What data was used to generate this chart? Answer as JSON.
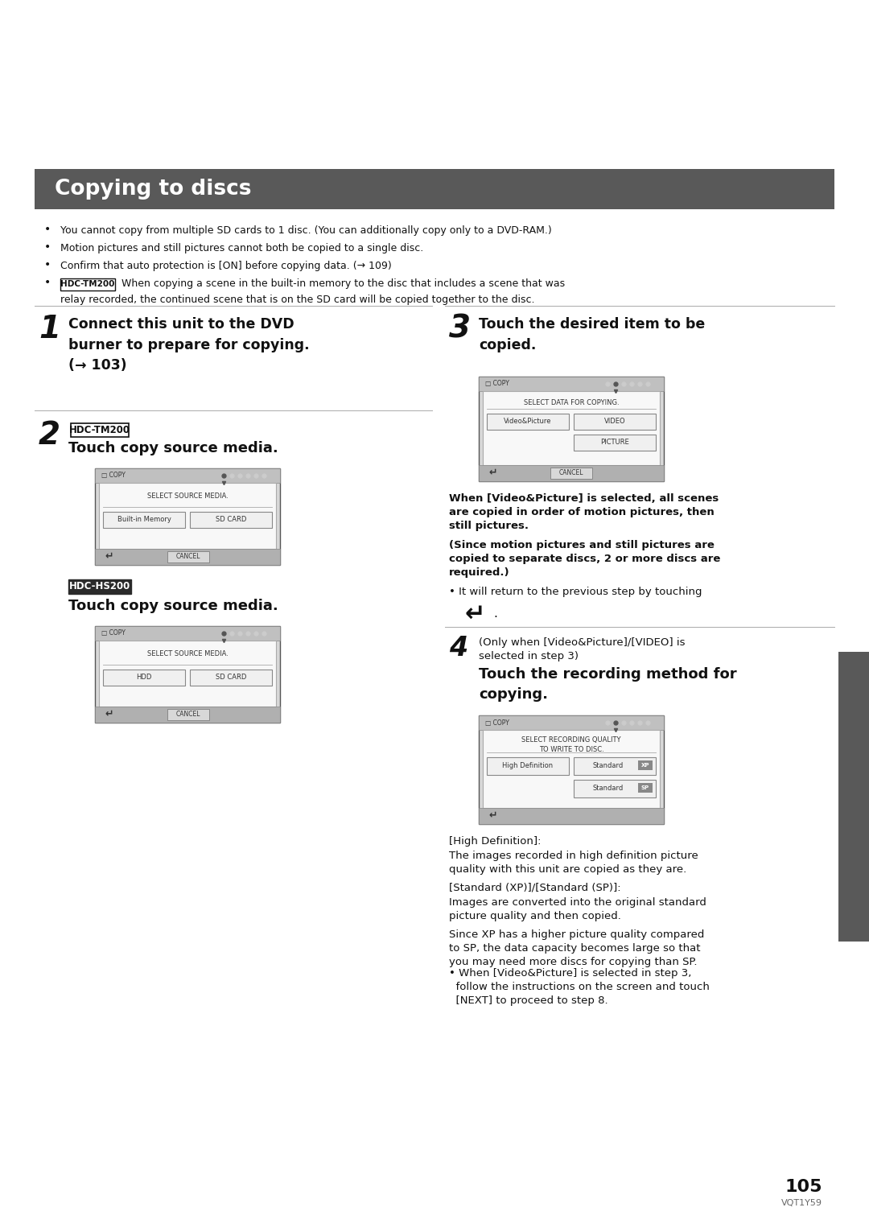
{
  "page_bg": "#ffffff",
  "title": "Copying to discs",
  "title_bg": "#595959",
  "title_fg": "#ffffff",
  "bullet1": "You cannot copy from multiple SD cards to 1 disc. (You can additionally copy only to a DVD-RAM.)",
  "bullet2": "Motion pictures and still pictures cannot both be copied to a single disc.",
  "bullet3": "Confirm that auto protection is [ON] before copying data. (→ 109)",
  "bullet4a": "HDC-TM200",
  "bullet4b": " When copying a scene in the built-in memory to the disc that includes a scene that was",
  "bullet4c": "relay recorded, the continued scene that is on the SD card will be copied together to the disc.",
  "step1_num": "1",
  "step1_text": "Connect this unit to the DVD\nburner to prepare for copying.\n(→ 103)",
  "step2_num": "2",
  "step2_tag": "HDC-TM200",
  "step2_text": "Touch copy source media.",
  "step2_screen_title": "SELECT SOURCE MEDIA.",
  "step2_btn1": "Built-in Memory",
  "step2_btn2": "SD CARD",
  "step2_cancel": "CANCEL",
  "step2b_tag": "HDC-HS200",
  "step2b_text": "Touch copy source media.",
  "step2b_screen_title": "SELECT SOURCE MEDIA.",
  "step2b_btn1": "HDD",
  "step2b_btn2": "SD CARD",
  "step2b_cancel": "CANCEL",
  "step3_num": "3",
  "step3_text": "Touch the desired item to be\ncopied.",
  "step3_screen_title": "SELECT DATA FOR COPYING.",
  "step3_btn1": "Video&Picture",
  "step3_btn2": "VIDEO",
  "step3_btn3": "PICTURE",
  "step3_cancel": "CANCEL",
  "step3_note1": "When [Video&Picture] is selected, all scenes\nare copied in order of motion pictures, then\nstill pictures.",
  "step3_note2": "(Since motion pictures and still pictures are\ncopied to separate discs, 2 or more discs are\nrequired.)",
  "step3_note3": "• It will return to the previous step by touching",
  "step4_num": "4",
  "step4_pre": "(Only when [Video&Picture]/[VIDEO] is\nselected in step 3)",
  "step4_text": "Touch the recording method for\ncopying.",
  "step4_screen_title": "SELECT RECORDING QUALITY\nTO WRITE TO DISC.",
  "step4_btn1": "High Definition",
  "step4_btn2": "Standard",
  "step4_btn2b": "XP",
  "step4_btn3": "Standard",
  "step4_btn3b": "SP",
  "note_hd_title": "[High Definition]:",
  "note_hd_body": "The images recorded in high definition picture\nquality with this unit are copied as they are.",
  "note_std_title": "[Standard (XP)]/[Standard (SP)]:",
  "note_std_body": "Images are converted into the original standard\npicture quality and then copied.",
  "note_xp": "Since XP has a higher picture quality compared\nto SP, the data capacity becomes large so that\nyou may need more discs for copying than SP.",
  "note_when": "• When [Video&Picture] is selected in step 3,\n  follow the instructions on the screen and touch\n  [NEXT] to proceed to step 8.",
  "page_num": "105",
  "page_code": "VQT1Y59",
  "sidebar_color": "#595959"
}
